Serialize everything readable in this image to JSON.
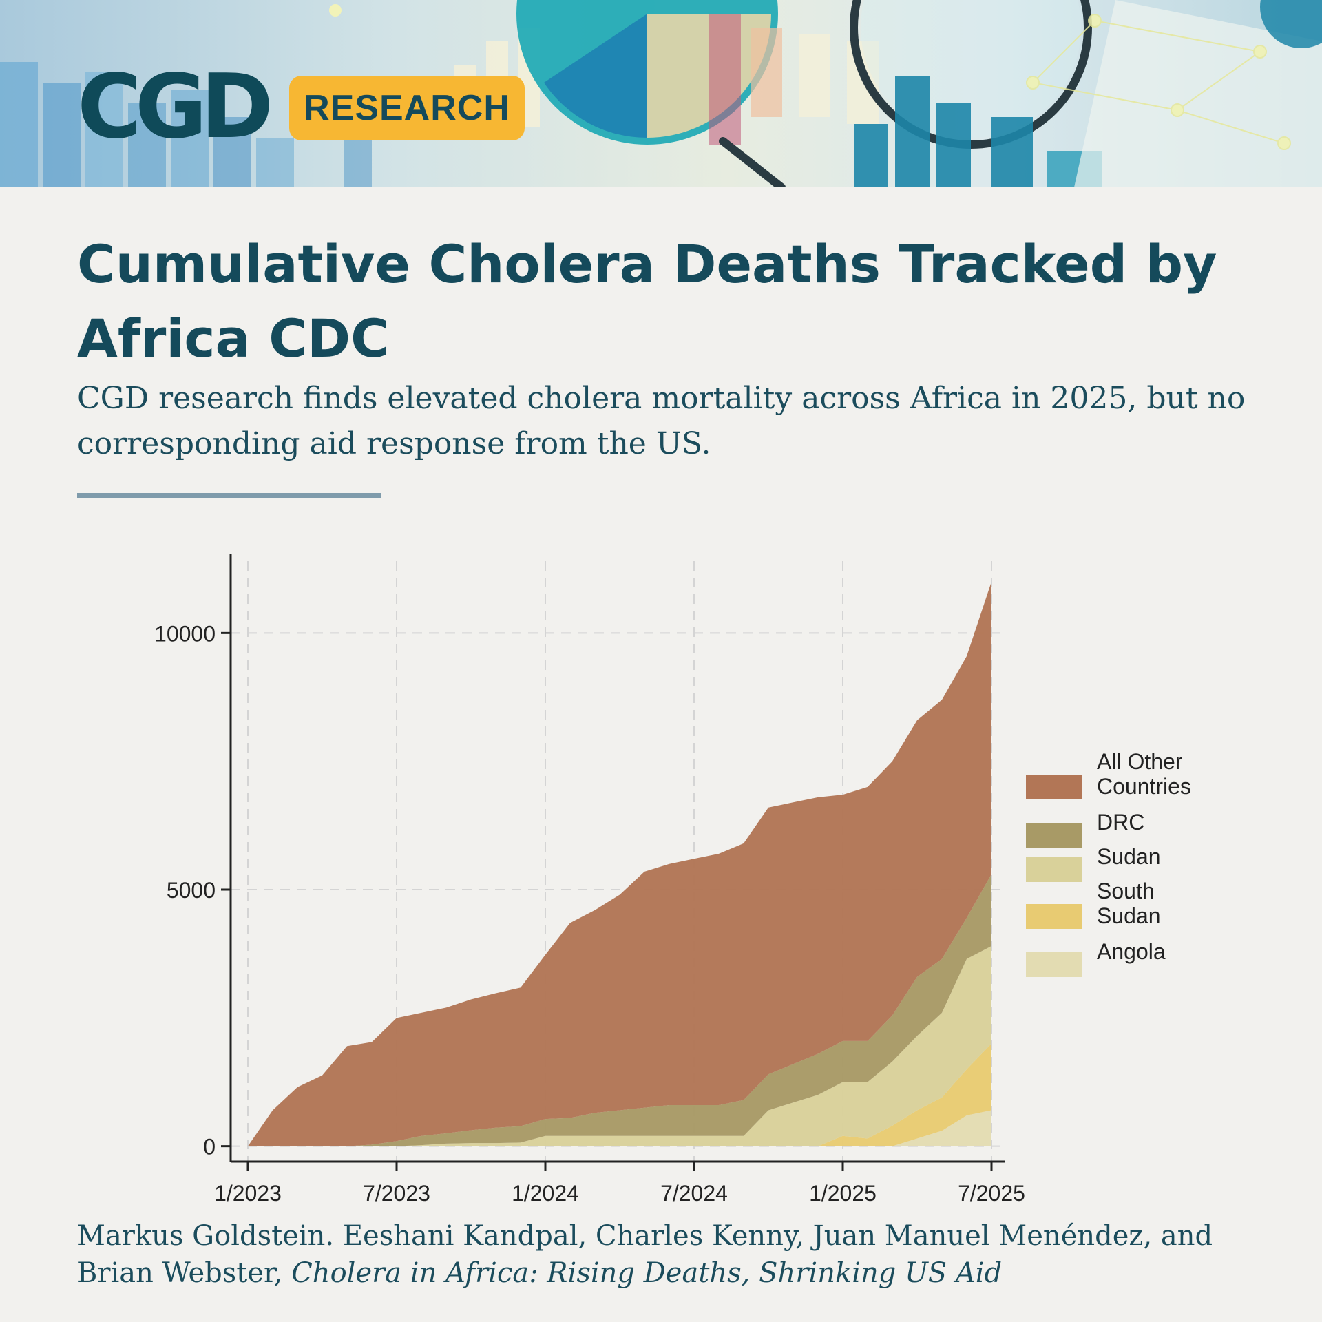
{
  "header": {
    "logo_text": "CGD",
    "badge_label": "RESEARCH"
  },
  "headline": {
    "title": "Cumulative Cholera Deaths Tracked by Africa CDC",
    "subtitle": "CGD research finds elevated cholera mortality across Africa in 2025, but no corresponding aid response from the US."
  },
  "citation": {
    "authors": "Markus Goldstein. Eeshani Kandpal, Charles Kenny, Juan Manuel Menéndez, and Brian Webster,",
    "work": "Cholera in Africa: Rising Deaths, Shrinking US Aid"
  },
  "colors": {
    "brand_teal": "#154a5b",
    "brand_yellow": "#f7b733"
  },
  "chart_data": {
    "type": "area",
    "stacked": true,
    "x": [
      "2023-01",
      "2023-02",
      "2023-03",
      "2023-04",
      "2023-05",
      "2023-06",
      "2023-07",
      "2023-08",
      "2023-09",
      "2023-10",
      "2023-11",
      "2023-12",
      "2024-01",
      "2024-02",
      "2024-03",
      "2024-04",
      "2024-05",
      "2024-06",
      "2024-07",
      "2024-08",
      "2024-09",
      "2024-10",
      "2024-11",
      "2024-12",
      "2025-01",
      "2025-02",
      "2025-03",
      "2025-04",
      "2025-05",
      "2025-06",
      "2025-07"
    ],
    "xticks": [
      "1/2023",
      "7/2023",
      "1/2024",
      "7/2024",
      "1/2025",
      "7/2025"
    ],
    "yticks": [
      0,
      5000,
      10000
    ],
    "ylim": [
      -300,
      11400
    ],
    "grid": true,
    "legend_position": "right",
    "series": [
      {
        "name": "Angola",
        "color": "#e3dcb2",
        "values": [
          0,
          0,
          0,
          0,
          0,
          0,
          0,
          0,
          0,
          0,
          0,
          0,
          0,
          0,
          0,
          0,
          0,
          0,
          0,
          0,
          0,
          0,
          0,
          0,
          0,
          0,
          0,
          150,
          300,
          600,
          700
        ]
      },
      {
        "name": "South Sudan",
        "color": "#e8cb72",
        "values": [
          0,
          0,
          0,
          0,
          0,
          0,
          0,
          0,
          0,
          0,
          0,
          0,
          0,
          0,
          0,
          0,
          0,
          0,
          0,
          0,
          0,
          0,
          0,
          0,
          200,
          150,
          400,
          550,
          650,
          900,
          1300
        ]
      },
      {
        "name": "Sudan",
        "color": "#d9d19a",
        "values": [
          0,
          0,
          0,
          0,
          0,
          0,
          0,
          20,
          50,
          60,
          60,
          70,
          200,
          200,
          200,
          200,
          200,
          200,
          200,
          200,
          200,
          700,
          850,
          1000,
          1050,
          1100,
          1250,
          1450,
          1650,
          2150,
          1900
        ]
      },
      {
        "name": "DRC",
        "color": "#a89a66",
        "values": [
          0,
          0,
          0,
          0,
          0,
          30,
          100,
          180,
          200,
          250,
          300,
          320,
          330,
          350,
          450,
          500,
          550,
          600,
          600,
          600,
          700,
          700,
          750,
          800,
          800,
          800,
          900,
          1150,
          1050,
          800,
          1400
        ]
      },
      {
        "name": "All Other Countries",
        "color": "#b27656",
        "values": [
          0,
          700,
          1150,
          1380,
          1950,
          2000,
          2400,
          2400,
          2450,
          2550,
          2620,
          2700,
          3200,
          3800,
          3950,
          4200,
          4600,
          4700,
          4800,
          4900,
          5000,
          5200,
          5100,
          5000,
          4800,
          4950,
          4950,
          5000,
          5050,
          5100,
          5700
        ]
      }
    ]
  }
}
